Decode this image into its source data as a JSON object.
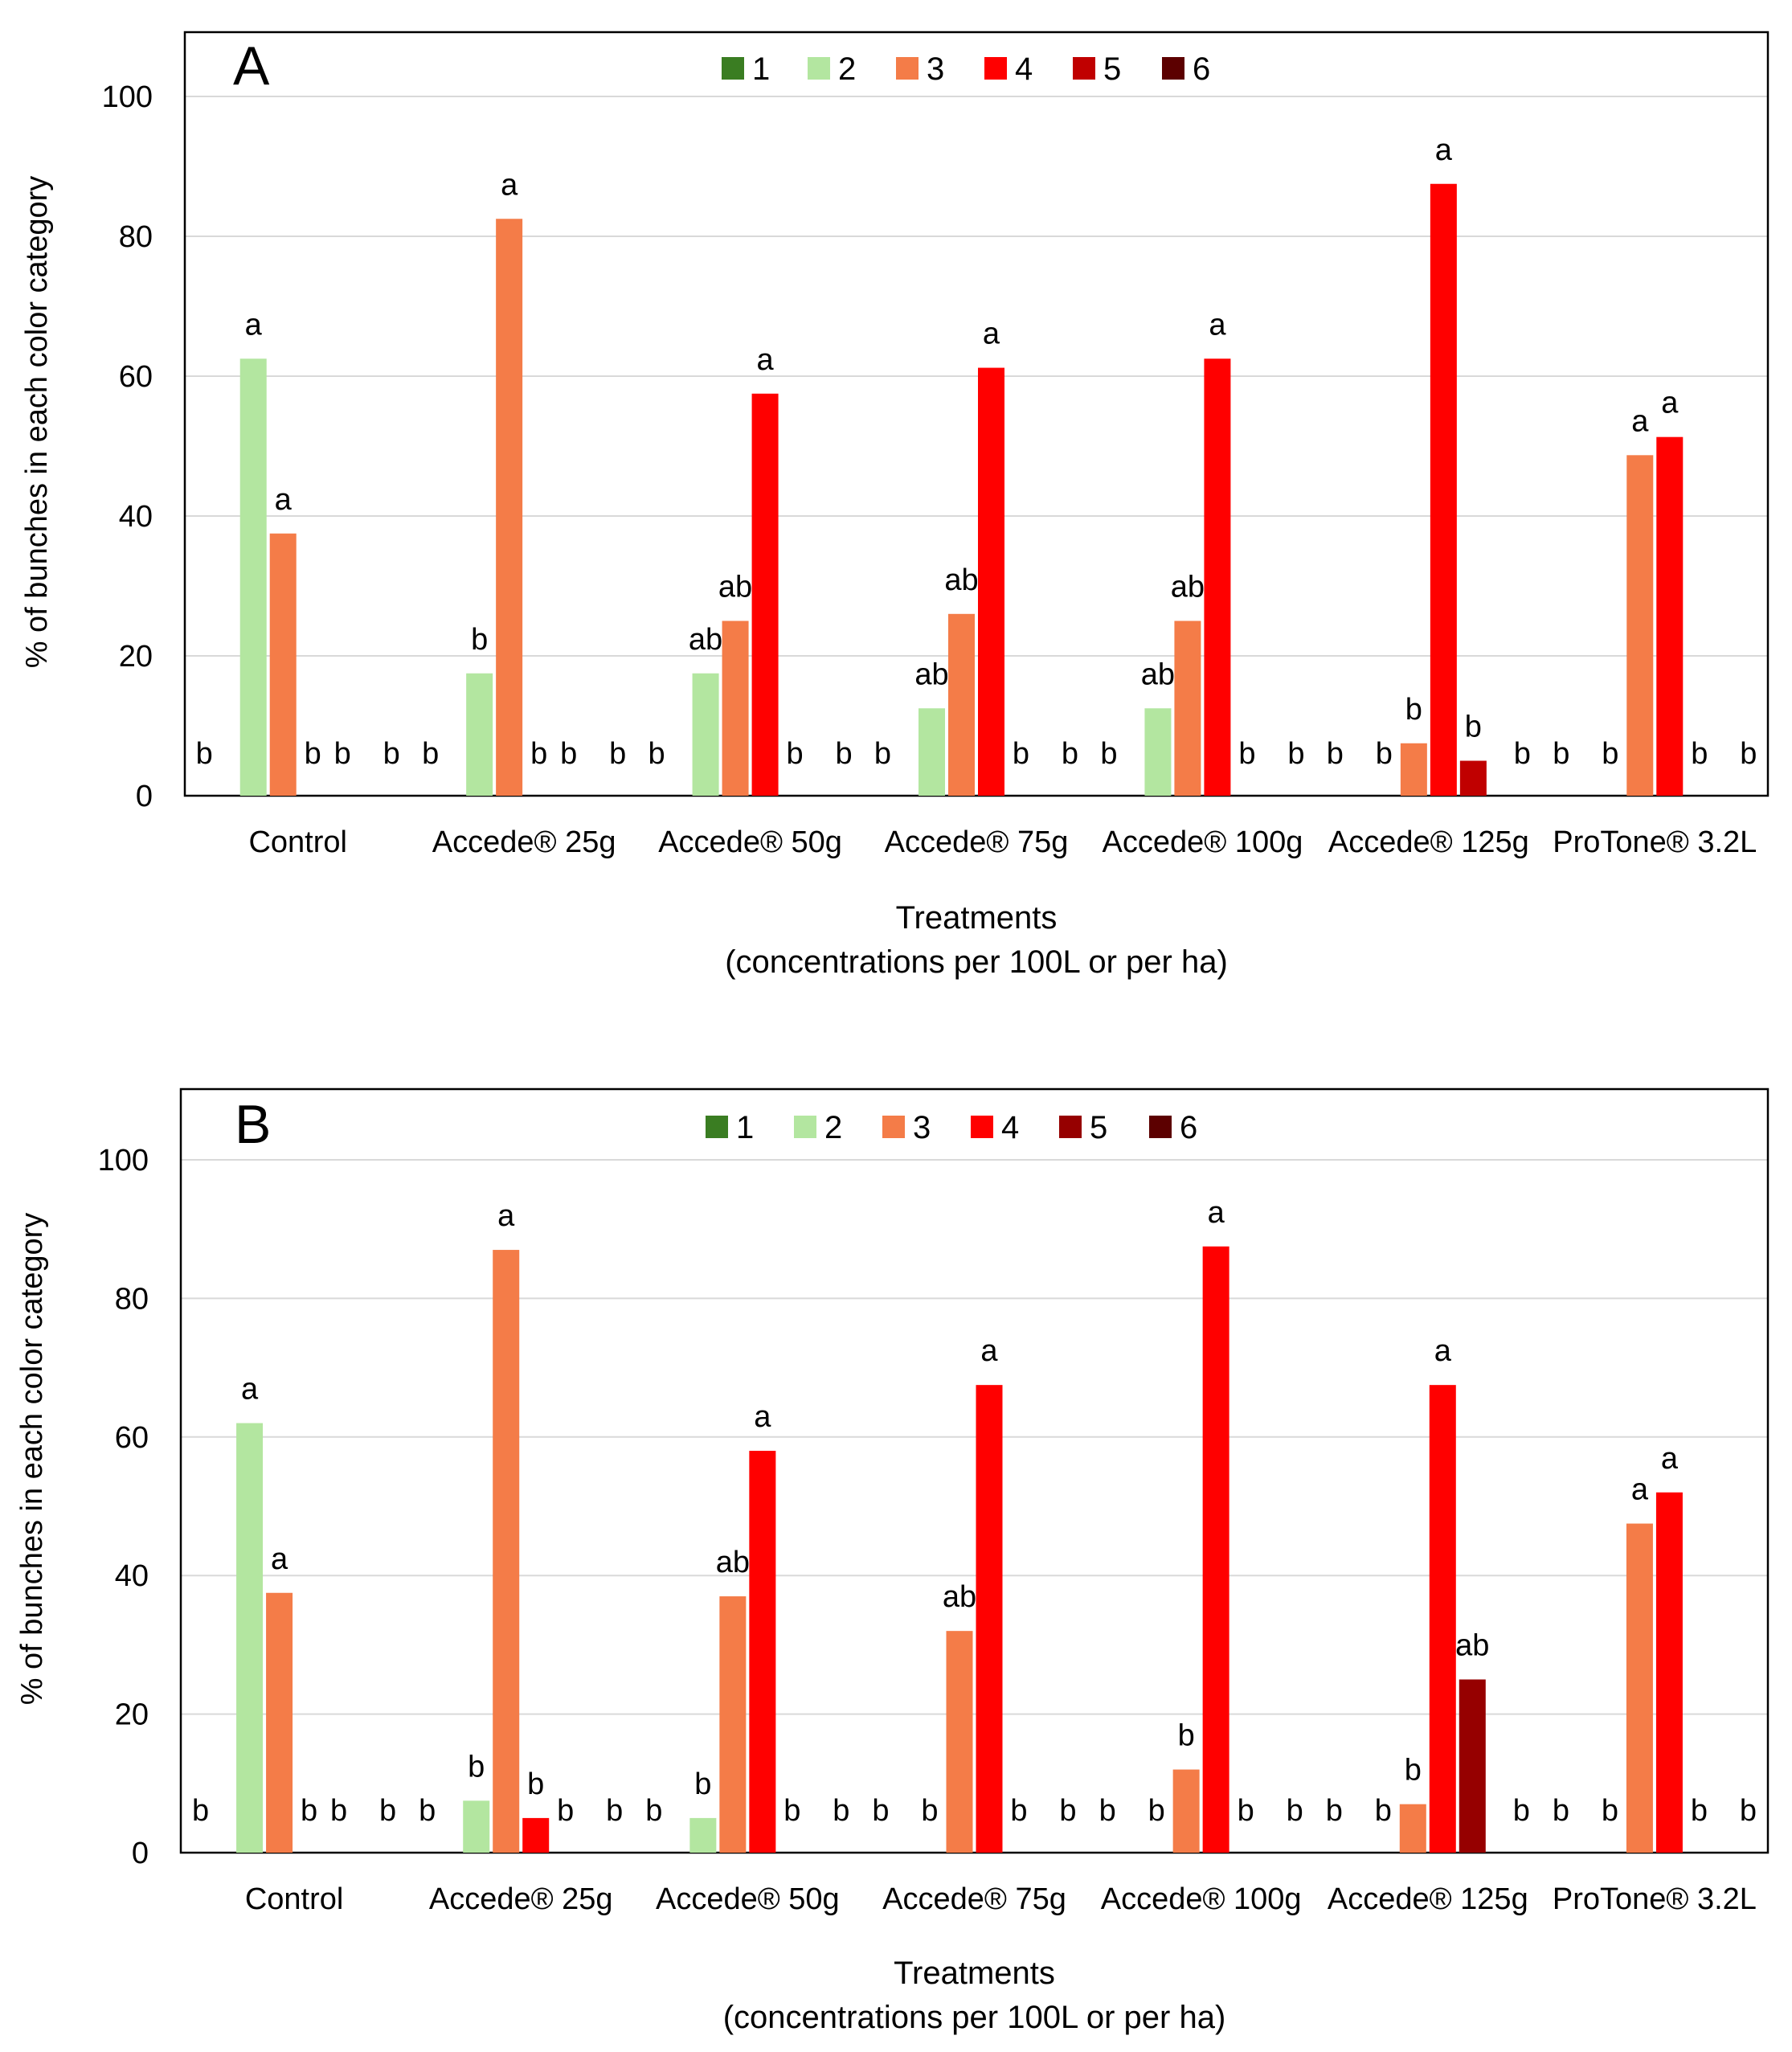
{
  "chart_data": [
    {
      "type": "bar",
      "panel_label": "A",
      "categories": [
        "Control",
        "Accede® 25g",
        "Accede® 50g",
        "Accede® 75g",
        "Accede® 100g",
        "Accede® 125g",
        "ProTone® 3.2L"
      ],
      "series": [
        {
          "name": "1",
          "color": "#3a7d22",
          "values": [
            0,
            0,
            0,
            0,
            0,
            0,
            0
          ],
          "letters": [
            "b",
            "b",
            "b",
            "b",
            "b",
            "b",
            "b"
          ]
        },
        {
          "name": "2",
          "color": "#b3e6a0",
          "values": [
            62.5,
            17.5,
            17.5,
            12.5,
            12.5,
            0,
            0
          ],
          "letters": [
            "a",
            "b",
            "ab",
            "ab",
            "ab",
            "b",
            "b"
          ]
        },
        {
          "name": "3",
          "color": "#f47c48",
          "values": [
            37.5,
            82.5,
            25,
            26,
            25,
            7.5,
            48.7
          ],
          "letters": [
            "a",
            "a",
            "ab",
            "ab",
            "ab",
            "b",
            "a"
          ]
        },
        {
          "name": "4",
          "color": "#ff0000",
          "values": [
            0,
            0,
            57.5,
            61.2,
            62.5,
            87.5,
            51.3
          ],
          "letters": [
            "b",
            "b",
            "a",
            "a",
            "a",
            "a",
            "a"
          ]
        },
        {
          "name": "5",
          "color": "#c00000",
          "values": [
            0,
            0,
            0,
            0,
            0,
            5,
            0
          ],
          "letters": [
            "b",
            "b",
            "b",
            "b",
            "b",
            "b",
            "b"
          ]
        },
        {
          "name": "6",
          "color": "#5c0000",
          "values": [
            0,
            0,
            0,
            0,
            0,
            0,
            0
          ],
          "letters": [
            "b",
            "b",
            "b",
            "b",
            "b",
            "b",
            "b"
          ]
        }
      ],
      "ylabel": "% of bunches  in each color category",
      "xlabel_line1": "Treatments",
      "xlabel_line2": "(concentrations  per 100L or per ha)",
      "ylim": [
        0,
        110
      ],
      "yticks": [
        0,
        20,
        40,
        60,
        80,
        100
      ],
      "grid": true,
      "legend_position": "top-center"
    },
    {
      "type": "bar",
      "panel_label": "B",
      "categories": [
        "Control",
        "Accede® 25g",
        "Accede® 50g",
        "Accede® 75g",
        "Accede® 100g",
        "Accede® 125g",
        "ProTone® 3.2L"
      ],
      "series": [
        {
          "name": "1",
          "color": "#3a7d22",
          "values": [
            0,
            0,
            0,
            0,
            0,
            0,
            0
          ],
          "letters": [
            "b",
            "b",
            "b",
            "b",
            "b",
            "b",
            "b"
          ]
        },
        {
          "name": "2",
          "color": "#b3e6a0",
          "values": [
            62,
            7.5,
            5,
            0,
            0,
            0,
            0
          ],
          "letters": [
            "a",
            "b",
            "b",
            "b",
            "b",
            "b",
            "b"
          ]
        },
        {
          "name": "3",
          "color": "#f47c48",
          "values": [
            37.5,
            87,
            37,
            32,
            12,
            7,
            47.5
          ],
          "letters": [
            "a",
            "a",
            "ab",
            "ab",
            "b",
            "b",
            "a"
          ]
        },
        {
          "name": "4",
          "color": "#ff0000",
          "values": [
            0,
            5,
            58,
            67.5,
            87.5,
            67.5,
            52
          ],
          "letters": [
            "b",
            "b",
            "a",
            "a",
            "a",
            "a",
            "a"
          ]
        },
        {
          "name": "5",
          "color": "#960000",
          "values": [
            0,
            0,
            0,
            0,
            0,
            25,
            0
          ],
          "letters": [
            "b",
            "b",
            "b",
            "b",
            "b",
            "ab",
            "b"
          ]
        },
        {
          "name": "6",
          "color": "#5c0000",
          "values": [
            0,
            0,
            0,
            0,
            0,
            0,
            0
          ],
          "letters": [
            "b",
            "b",
            "b",
            "b",
            "b",
            "b",
            "b"
          ]
        }
      ],
      "ylabel": "% of bunches  in each color category",
      "xlabel_line1": "Treatments",
      "xlabel_line2": "(concentrations per 100L or per ha)",
      "ylim": [
        0,
        110
      ],
      "yticks": [
        0,
        20,
        40,
        60,
        80,
        100
      ],
      "grid": true,
      "legend_position": "top-center"
    }
  ]
}
